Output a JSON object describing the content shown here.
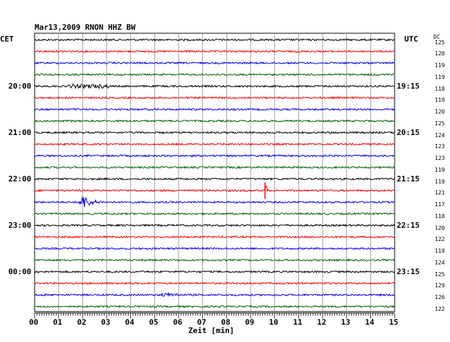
{
  "header": {
    "title": "Mar13,2009   RNON HHZ BW",
    "left_tz": "CET",
    "right_tz": "UTC",
    "dc_label": "DC"
  },
  "chart_data": {
    "type": "line",
    "title": "Mar13,2009   RNON HHZ BW",
    "xlabel": "Zeit [min]",
    "xlim": [
      0,
      15
    ],
    "x_ticks": [
      "00",
      "01",
      "02",
      "03",
      "04",
      "05",
      "06",
      "07",
      "08",
      "09",
      "10",
      "11",
      "12",
      "13",
      "14",
      "15"
    ],
    "trace_colors": [
      "#000000",
      "#ff0000",
      "#0000ff",
      "#006400"
    ],
    "left_time_labels": [
      {
        "trace": 4,
        "text": "20:00"
      },
      {
        "trace": 8,
        "text": "21:00"
      },
      {
        "trace": 12,
        "text": "22:00"
      },
      {
        "trace": 16,
        "text": "23:00"
      },
      {
        "trace": 20,
        "text": "00:00"
      }
    ],
    "right_time_labels": [
      {
        "trace": 4,
        "text": "19:15"
      },
      {
        "trace": 8,
        "text": "20:15"
      },
      {
        "trace": 12,
        "text": "21:15"
      },
      {
        "trace": 16,
        "text": "22:15"
      },
      {
        "trace": 20,
        "text": "23:15"
      }
    ],
    "dc_offsets": [
      "125",
      "128",
      "119",
      "119",
      "118",
      "119",
      "120",
      "125",
      "124",
      "123",
      "123",
      "119",
      "119",
      "121",
      "117",
      "118",
      "120",
      "122",
      "119",
      "124",
      "125",
      "129",
      "126",
      "122"
    ],
    "events": [
      {
        "trace": 4,
        "start_min": 1.4,
        "end_min": 3.1,
        "amplitude": 3,
        "kind": "noise-burst"
      },
      {
        "trace": 13,
        "start_min": 9.6,
        "end_min": 9.7,
        "amplitude": 12,
        "kind": "spike"
      },
      {
        "trace": 14,
        "start_min": 1.8,
        "end_min": 3.5,
        "amplitude": 11,
        "kind": "earthquake"
      },
      {
        "trace": 22,
        "start_min": 5.2,
        "end_min": 6.0,
        "amplitude": 3,
        "kind": "noise-burst"
      }
    ]
  }
}
